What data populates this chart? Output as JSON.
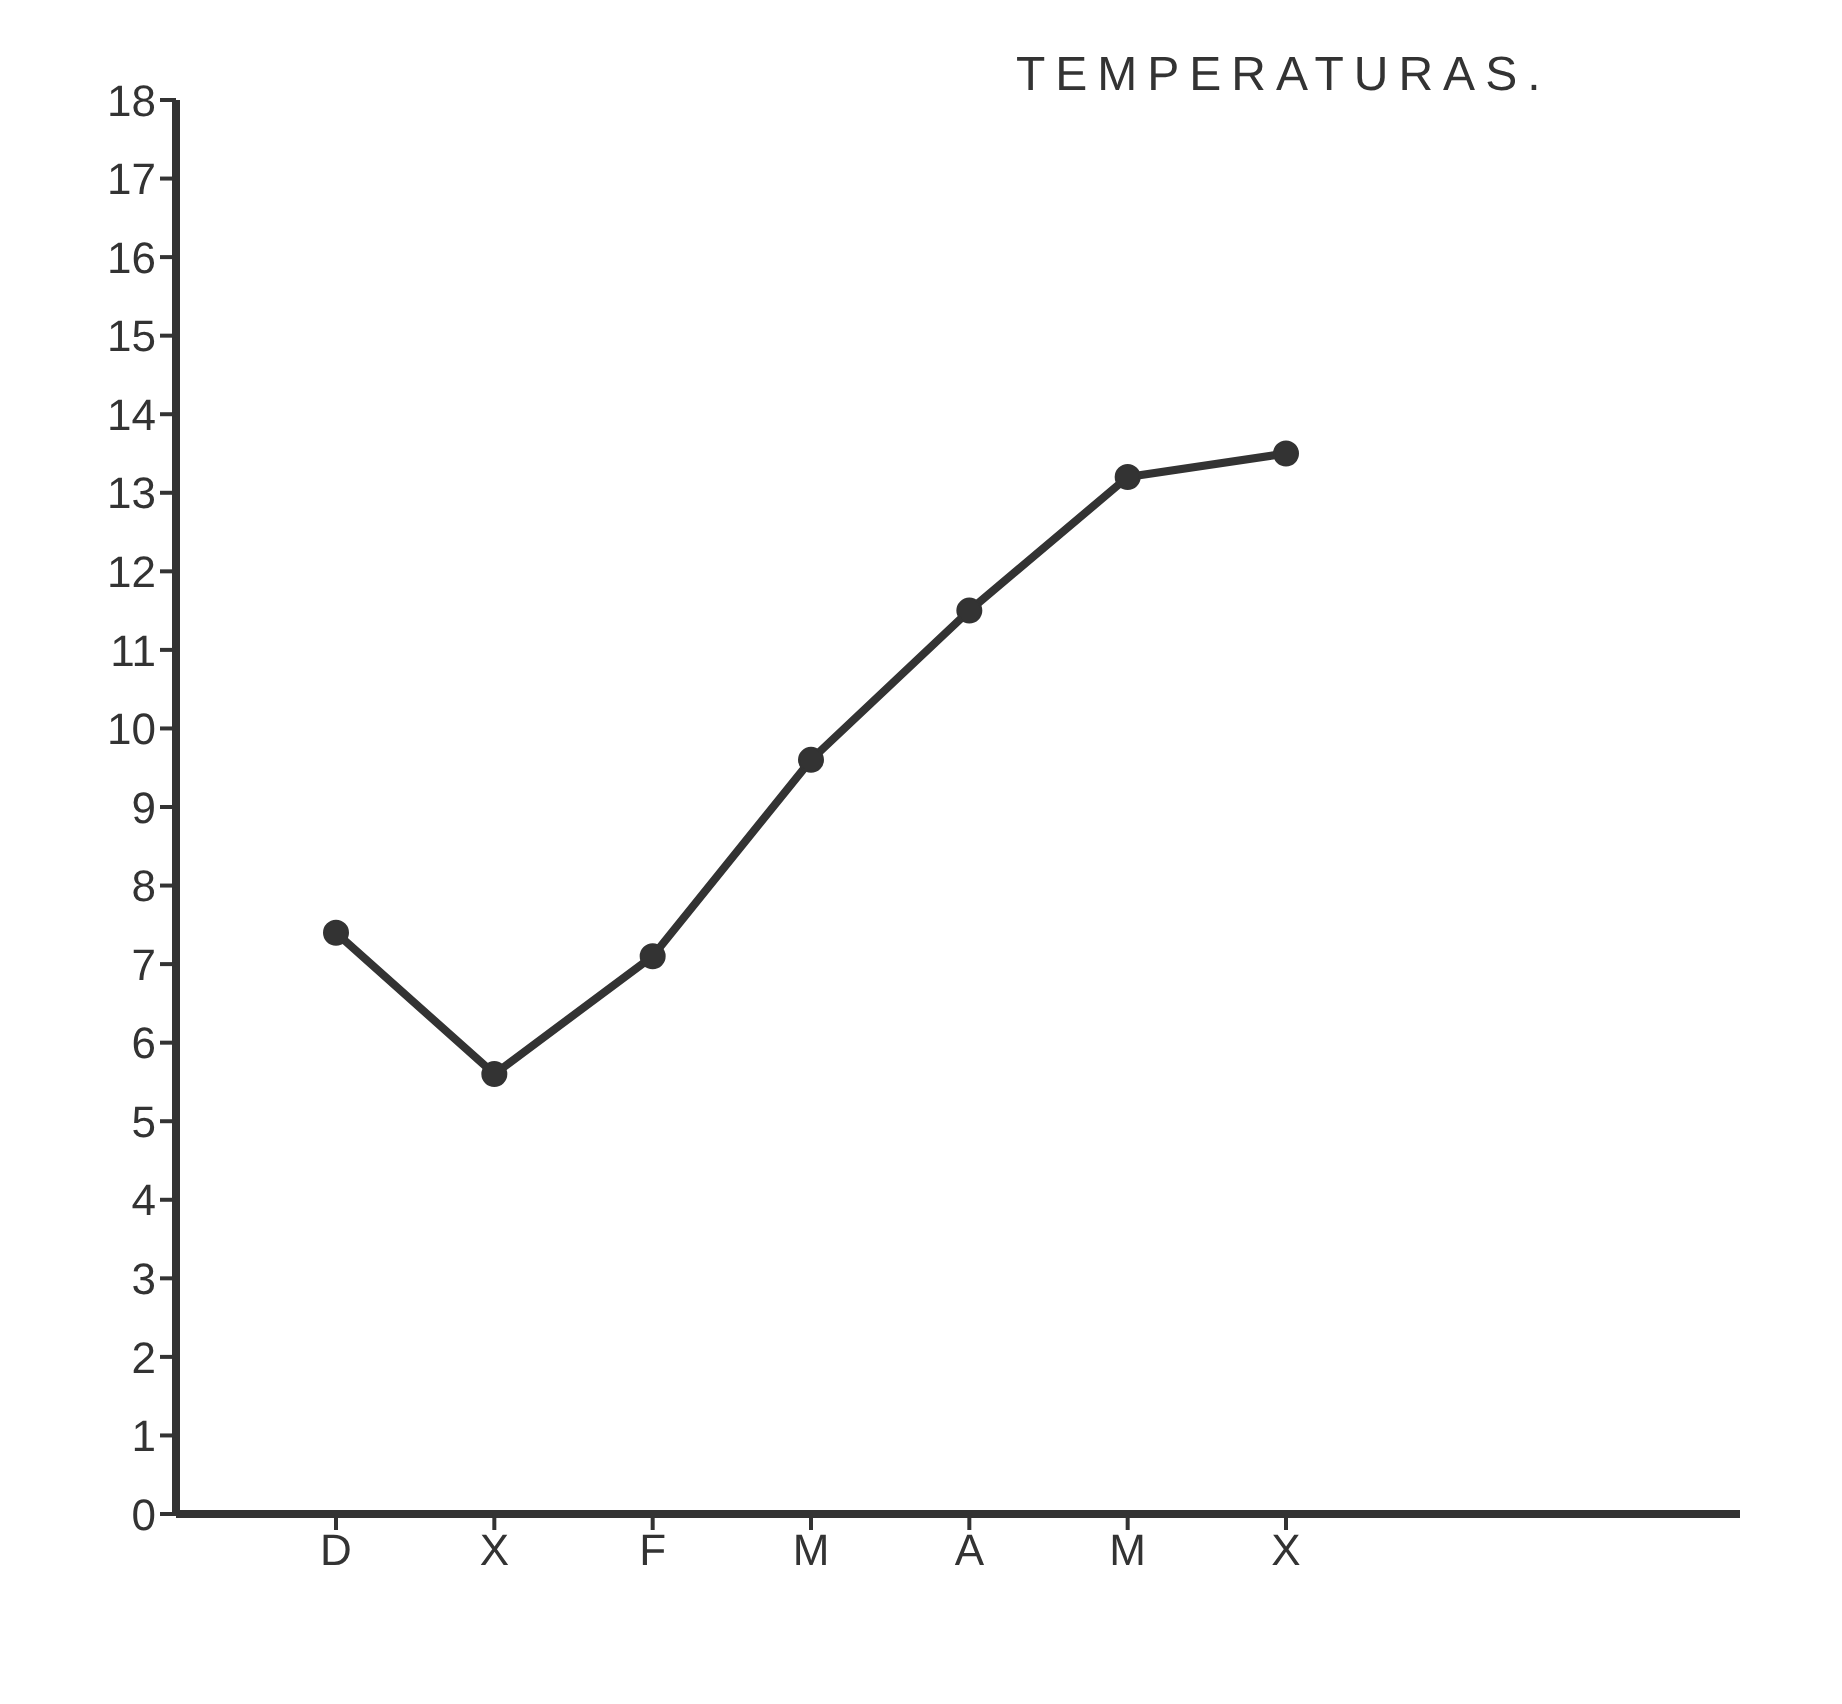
{
  "chart_data": {
    "type": "line",
    "title": "TEMPERATURAS.",
    "categories": [
      "D",
      "X",
      "F",
      "M",
      "A",
      "M",
      "X"
    ],
    "series": [
      {
        "color": "#333333",
        "values": [
          7.4,
          5.6,
          7.1,
          9.6,
          11.5,
          13.2,
          13.5
        ]
      }
    ],
    "ylim": [
      0,
      18
    ],
    "yticks": [
      0,
      1,
      2,
      3,
      4,
      5,
      6,
      7,
      8,
      9,
      10,
      11,
      12,
      13,
      14,
      15,
      16,
      17,
      18
    ],
    "marker": "circle",
    "line_style": "solid"
  }
}
